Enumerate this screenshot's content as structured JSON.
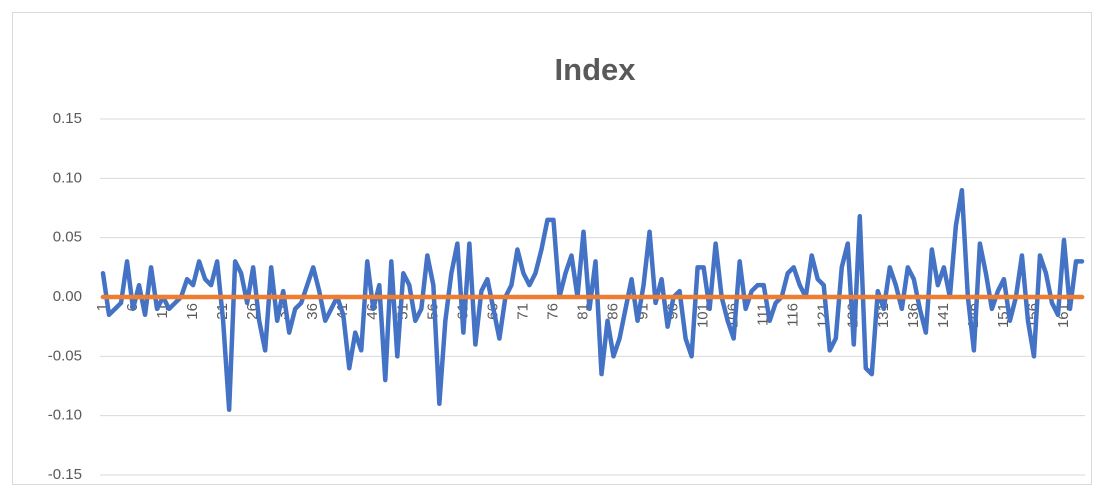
{
  "chart_data": {
    "type": "line",
    "title": "Index",
    "categories": [
      1,
      null,
      null,
      null,
      null,
      6,
      null,
      null,
      null,
      null,
      11,
      null,
      null,
      null,
      null,
      16,
      null,
      null,
      null,
      null,
      21,
      null,
      null,
      null,
      null,
      26,
      null,
      null,
      null,
      null,
      31,
      null,
      null,
      null,
      null,
      36,
      null,
      null,
      null,
      null,
      41,
      null,
      null,
      null,
      null,
      46,
      null,
      null,
      null,
      null,
      51,
      null,
      null,
      null,
      null,
      56,
      null,
      null,
      null,
      null,
      61,
      null,
      null,
      null,
      null,
      66,
      null,
      null,
      null,
      null,
      71,
      null,
      null,
      null,
      null,
      76,
      null,
      null,
      null,
      null,
      81,
      null,
      null,
      null,
      null,
      86,
      null,
      null,
      null,
      null,
      91,
      null,
      null,
      null,
      null,
      96,
      null,
      null,
      null,
      null,
      101,
      null,
      null,
      null,
      null,
      106,
      null,
      null,
      null,
      null,
      111,
      null,
      null,
      null,
      null,
      116,
      null,
      null,
      null,
      null,
      121,
      null,
      null,
      null,
      null,
      126,
      null,
      null,
      null,
      null,
      131,
      null,
      null,
      null,
      null,
      136,
      null,
      null,
      null,
      null,
      141,
      null,
      null,
      null,
      null,
      146,
      null,
      null,
      null,
      null,
      151,
      null,
      null,
      null,
      null,
      156,
      null,
      null,
      null,
      null,
      161,
      null,
      null,
      null
    ],
    "series": [
      {
        "color": "#4472c4",
        "values": [
          0.02,
          -0.015,
          -0.01,
          -0.005,
          0.03,
          -0.01,
          0.01,
          -0.015,
          0.025,
          -0.01,
          0.0,
          -0.01,
          -0.005,
          0.0,
          0.015,
          0.01,
          0.03,
          0.015,
          0.01,
          0.03,
          -0.02,
          -0.095,
          0.03,
          0.02,
          -0.005,
          0.025,
          -0.02,
          -0.045,
          0.025,
          -0.02,
          0.005,
          -0.03,
          -0.01,
          -0.005,
          0.01,
          0.025,
          0.005,
          -0.02,
          -0.01,
          0.0,
          -0.015,
          -0.06,
          -0.03,
          -0.045,
          0.03,
          -0.01,
          0.01,
          -0.07,
          0.03,
          -0.05,
          0.02,
          0.01,
          -0.02,
          -0.01,
          0.035,
          0.01,
          -0.09,
          -0.02,
          0.02,
          0.045,
          -0.03,
          0.045,
          -0.04,
          0.005,
          0.015,
          -0.01,
          -0.035,
          0.0,
          0.01,
          0.04,
          0.02,
          0.01,
          0.02,
          0.04,
          0.065,
          0.065,
          0.0,
          0.02,
          0.035,
          0.0,
          0.055,
          -0.01,
          0.03,
          -0.065,
          -0.02,
          -0.05,
          -0.035,
          -0.01,
          0.015,
          -0.02,
          0.01,
          0.055,
          -0.005,
          0.015,
          -0.025,
          0.0,
          0.005,
          -0.035,
          -0.05,
          0.025,
          0.025,
          -0.01,
          0.045,
          0.0,
          -0.02,
          -0.035,
          0.03,
          -0.01,
          0.005,
          0.01,
          0.01,
          -0.02,
          -0.005,
          0.0,
          0.02,
          0.025,
          0.01,
          0.0,
          0.035,
          0.015,
          0.01,
          -0.045,
          -0.035,
          0.025,
          0.045,
          -0.04,
          0.068,
          -0.06,
          -0.065,
          0.005,
          -0.01,
          0.025,
          0.01,
          -0.01,
          0.025,
          0.015,
          -0.01,
          -0.03,
          0.04,
          0.01,
          0.025,
          0.0,
          0.06,
          0.09,
          0.0,
          -0.045,
          0.045,
          0.02,
          -0.01,
          0.005,
          0.015,
          -0.02,
          0.0,
          0.035,
          -0.02,
          -0.05,
          0.035,
          0.02,
          -0.005,
          -0.015,
          0.048,
          -0.01,
          0.03,
          0.03
        ]
      },
      {
        "color": "#ed7d31",
        "values": [
          0,
          0,
          0,
          0,
          0,
          0,
          0,
          0,
          0,
          0,
          0,
          0,
          0,
          0,
          0,
          0,
          0,
          0,
          0,
          0,
          0,
          0,
          0,
          0,
          0,
          0,
          0,
          0,
          0,
          0,
          0,
          0,
          0,
          0,
          0,
          0,
          0,
          0,
          0,
          0,
          0,
          0,
          0,
          0,
          0,
          0,
          0,
          0,
          0,
          0,
          0,
          0,
          0,
          0,
          0,
          0,
          0,
          0,
          0,
          0,
          0,
          0,
          0,
          0,
          0,
          0,
          0,
          0,
          0,
          0,
          0,
          0,
          0,
          0,
          0,
          0,
          0,
          0,
          0,
          0,
          0,
          0,
          0,
          0,
          0,
          0,
          0,
          0,
          0,
          0,
          0,
          0,
          0,
          0,
          0,
          0,
          0,
          0,
          0,
          0,
          0,
          0,
          0,
          0,
          0,
          0,
          0,
          0,
          0,
          0,
          0,
          0,
          0,
          0,
          0,
          0,
          0,
          0,
          0,
          0,
          0,
          0,
          0,
          0,
          0,
          0,
          0,
          0,
          0,
          0,
          0,
          0,
          0,
          0,
          0,
          0,
          0,
          0,
          0,
          0,
          0,
          0,
          0,
          0,
          0,
          0,
          0,
          0,
          0,
          0,
          0,
          0,
          0,
          0,
          0,
          0,
          0,
          0,
          0,
          0,
          0,
          0,
          0,
          0
        ]
      }
    ],
    "ylim": [
      -0.15,
      0.15
    ],
    "yticks": [
      -0.15,
      {
        "value": -0.1,
        "label": "-0.10"
      },
      -0.05,
      {
        "value": 0,
        "label": "0.00"
      },
      0.05,
      {
        "value": 0.1,
        "label": "0.10"
      },
      0.15
    ],
    "grid": true
  }
}
